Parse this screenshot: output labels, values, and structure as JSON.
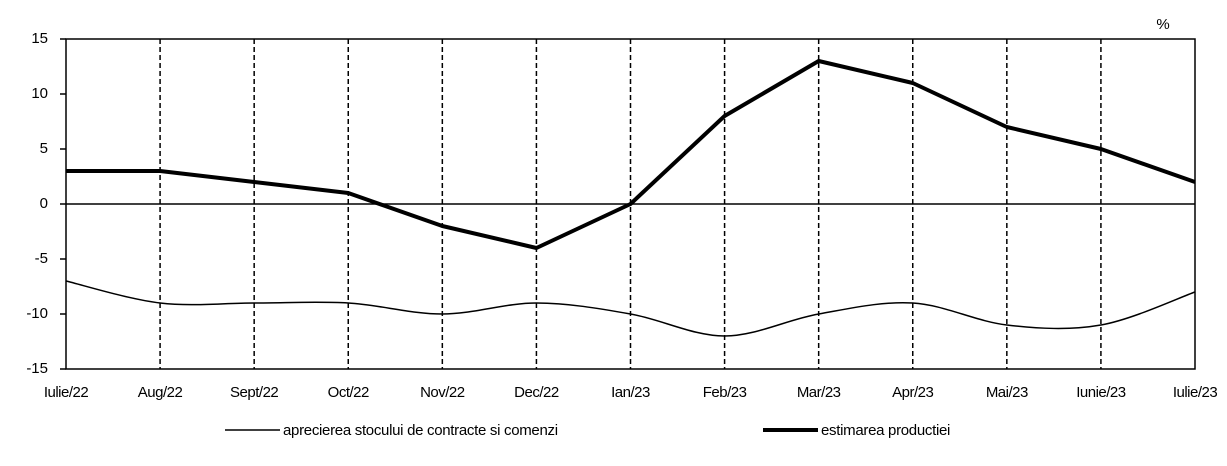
{
  "chart_data": {
    "type": "line",
    "unit": "%",
    "categories": [
      "Iulie/22",
      "Aug/22",
      "Sept/22",
      "Oct/22",
      "Nov/22",
      "Dec/22",
      "Ian/23",
      "Feb/23",
      "Mar/23",
      "Apr/23",
      "Mai/23",
      "Iunie/23",
      "Iulie/23"
    ],
    "series": [
      {
        "name": "aprecierea stocului de contracte si comenzi",
        "color": "#000000",
        "width": 1.5,
        "smooth": true,
        "values": [
          -7,
          -9,
          -9,
          -9,
          -10,
          -9,
          -10,
          -12,
          -10,
          -9,
          -11,
          -11,
          -8
        ]
      },
      {
        "name": "estimarea productiei",
        "color": "#000000",
        "width": 4,
        "smooth": false,
        "values": [
          3,
          3,
          2,
          1,
          -2,
          -4,
          0,
          8,
          13,
          11,
          7,
          5,
          2
        ]
      }
    ],
    "ylim": [
      -15,
      15
    ],
    "yticks": [
      -15,
      -10,
      -5,
      0,
      5,
      10,
      15
    ],
    "grid": true
  }
}
